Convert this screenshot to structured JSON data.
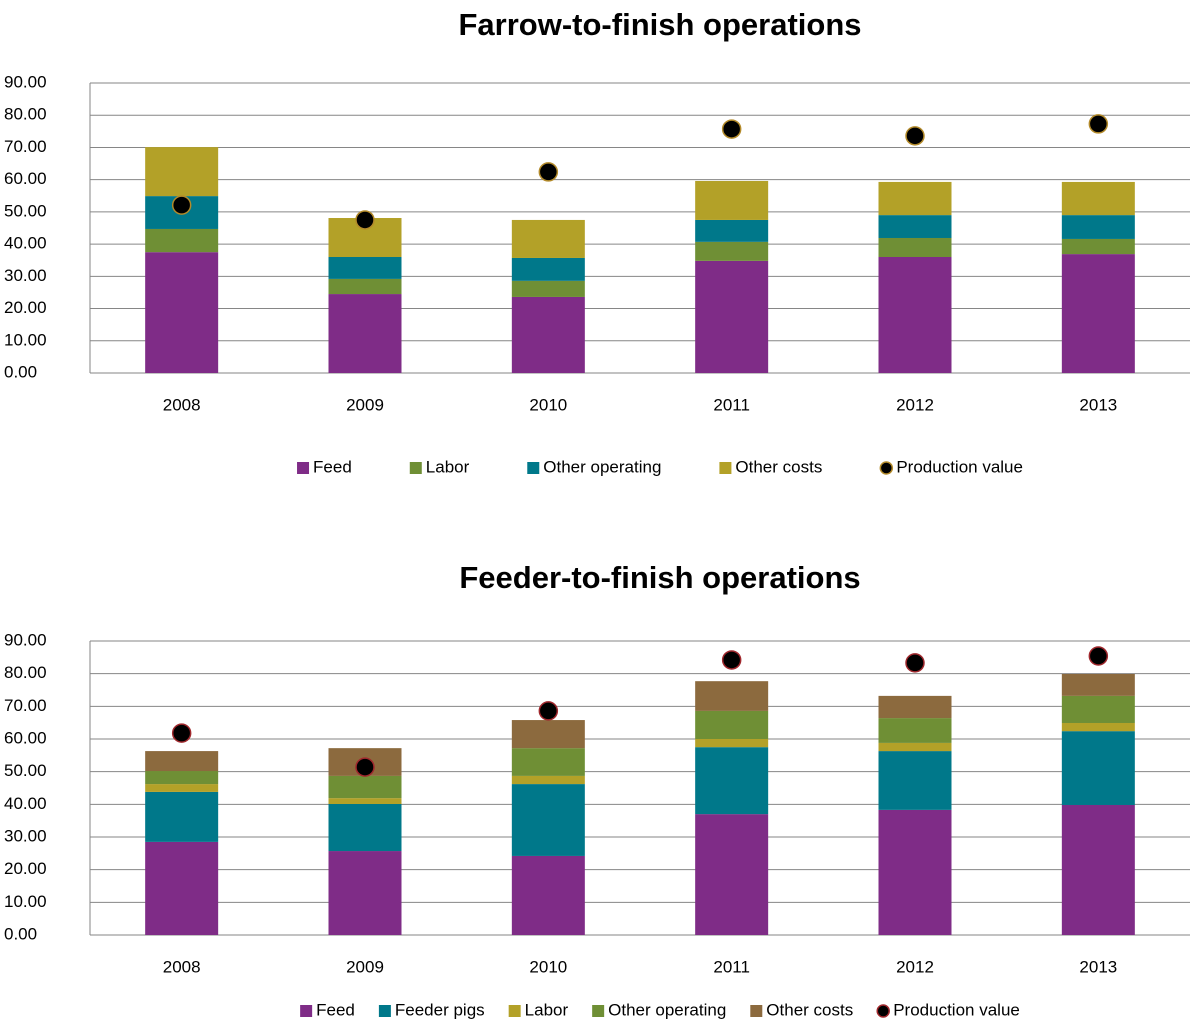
{
  "chart_data": [
    {
      "type": "bar",
      "stacked": true,
      "title": "Farrow-to-finish operations",
      "categories": [
        "2008",
        "2009",
        "2010",
        "2011",
        "2012",
        "2013"
      ],
      "series": [
        {
          "name": "Feed",
          "color": "#7f2c87",
          "values": [
            37.5,
            24.5,
            23.6,
            34.8,
            36.0,
            36.9
          ]
        },
        {
          "name": "Labor",
          "color": "#6f8f35",
          "values": [
            7.2,
            4.7,
            5.0,
            5.9,
            5.9,
            4.7
          ]
        },
        {
          "name": "Other operating",
          "color": "#00788a",
          "values": [
            10.2,
            6.8,
            7.1,
            6.8,
            7.1,
            7.4
          ]
        },
        {
          "name": "Other costs",
          "color": "#b3a128",
          "values": [
            15.2,
            12.1,
            11.8,
            12.1,
            10.3,
            10.3
          ]
        },
        {
          "name": "Production value",
          "type": "scatter",
          "color": "#000000",
          "edgecolor": "#b38a2a",
          "values": [
            52.1,
            47.5,
            62.4,
            75.7,
            73.6,
            77.3
          ]
        }
      ],
      "ylim": [
        0,
        90
      ],
      "yticks": [
        {
          "value": 0,
          "label": "0.00"
        },
        {
          "value": 10,
          "label": "10.00"
        },
        {
          "value": 20,
          "label": "20.00"
        },
        {
          "value": 30,
          "label": "30.00"
        },
        {
          "value": 40,
          "label": "40.00"
        },
        {
          "value": 50,
          "label": "50.00"
        },
        {
          "value": 60,
          "label": "60.00"
        },
        {
          "value": 70,
          "label": "70.00"
        },
        {
          "value": 80,
          "label": "80.00"
        },
        {
          "value": 90,
          "label": "90.00"
        }
      ],
      "grid": true,
      "legend": "bottom"
    },
    {
      "type": "bar",
      "stacked": true,
      "title": "Feeder-to-finish operations",
      "categories": [
        "2008",
        "2009",
        "2010",
        "2011",
        "2012",
        "2013"
      ],
      "series": [
        {
          "name": "Feed",
          "color": "#7f2c87",
          "values": [
            28.5,
            25.7,
            24.2,
            37.0,
            38.3,
            39.8
          ]
        },
        {
          "name": "Feeder pigs",
          "color": "#00788a",
          "values": [
            15.3,
            14.4,
            22.0,
            20.5,
            18.0,
            22.6
          ]
        },
        {
          "name": "Labor",
          "color": "#b3a128",
          "values": [
            2.4,
            1.8,
            2.5,
            2.5,
            2.5,
            2.5
          ]
        },
        {
          "name": "Other operating",
          "color": "#6f8f35",
          "values": [
            4.0,
            6.8,
            8.5,
            8.6,
            7.6,
            8.3
          ]
        },
        {
          "name": "Other costs",
          "color": "#8c6a3e",
          "values": [
            6.1,
            8.5,
            8.6,
            9.1,
            6.8,
            6.7
          ]
        },
        {
          "name": "Production value",
          "type": "scatter",
          "color": "#000000",
          "edgecolor": "#a0282d",
          "values": [
            61.8,
            51.4,
            68.6,
            84.2,
            83.3,
            85.4
          ]
        }
      ],
      "ylim": [
        0,
        90
      ],
      "yticks": [
        {
          "value": 0,
          "label": "0.00"
        },
        {
          "value": 10,
          "label": "10.00"
        },
        {
          "value": 20,
          "label": "20.00"
        },
        {
          "value": 30,
          "label": "30.00"
        },
        {
          "value": 40,
          "label": "40.00"
        },
        {
          "value": 50,
          "label": "50.00"
        },
        {
          "value": 60,
          "label": "60.00"
        },
        {
          "value": 70,
          "label": "70.00"
        },
        {
          "value": 80,
          "label": "80.00"
        },
        {
          "value": 90,
          "label": "90.00"
        }
      ],
      "grid": true,
      "legend": "bottom"
    }
  ]
}
